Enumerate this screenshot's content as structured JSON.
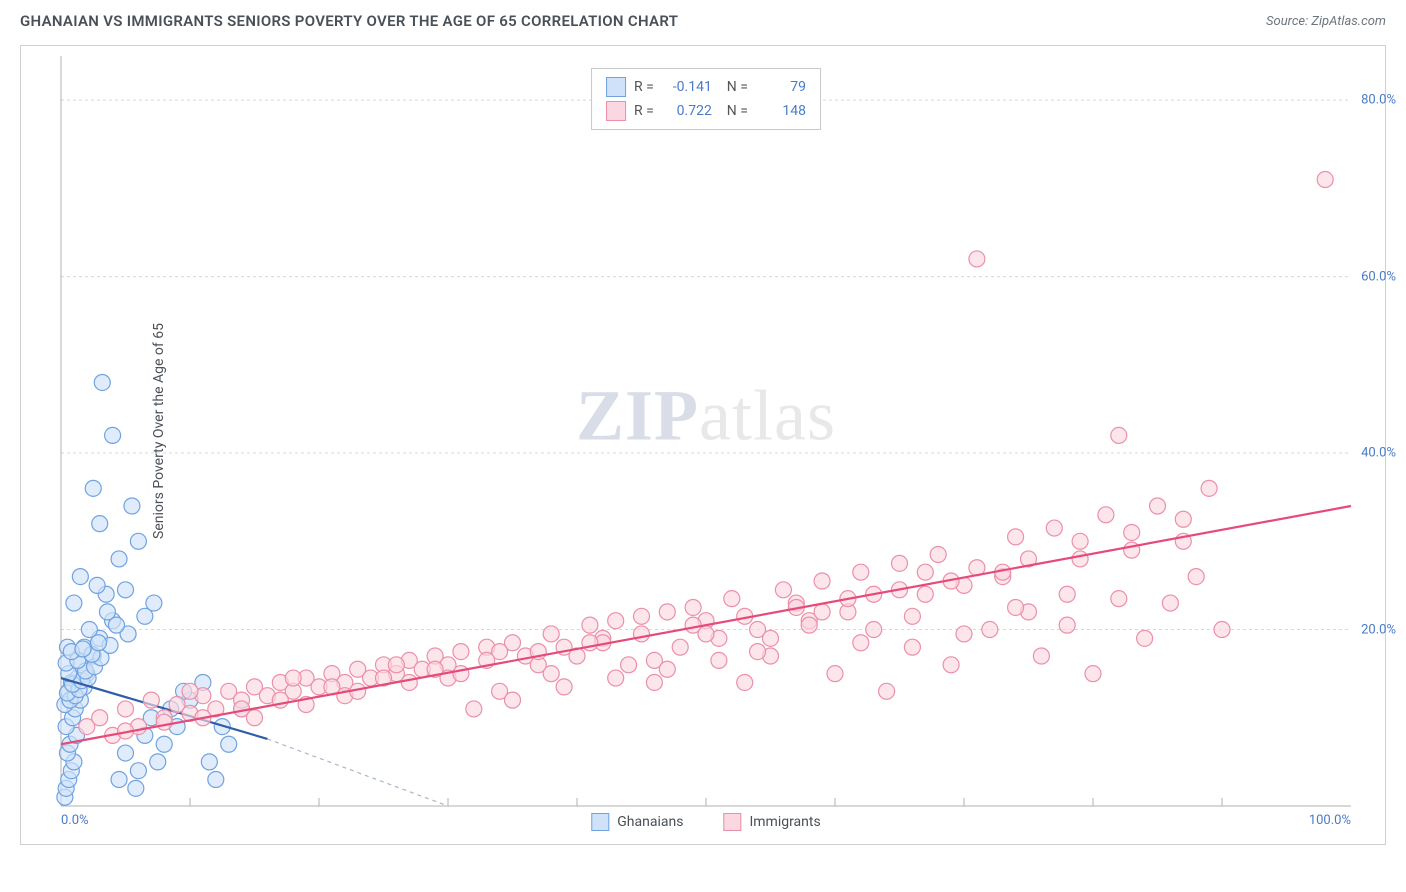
{
  "header": {
    "title": "GHANAIAN VS IMMIGRANTS SENIORS POVERTY OVER THE AGE OF 65 CORRELATION CHART",
    "source": "Source: ZipAtlas.com"
  },
  "chart": {
    "type": "scatter",
    "ylabel": "Seniors Poverty Over the Age of 65",
    "xlim": [
      0,
      100
    ],
    "ylim": [
      0,
      85
    ],
    "xtick_labels": [
      "0.0%",
      "100.0%"
    ],
    "ytick_values": [
      20,
      40,
      60,
      80
    ],
    "ytick_labels": [
      "20.0%",
      "40.0%",
      "60.0%",
      "80.0%"
    ],
    "xticks_minor": [
      10,
      20,
      30,
      40,
      50,
      60,
      70,
      80,
      90
    ],
    "grid_color": "#d8d8d8",
    "background_color": "#ffffff",
    "marker_radius": 8,
    "marker_stroke_width": 1.2,
    "line_width": 2.2,
    "series": [
      {
        "id": "ghanaians",
        "label": "Ghanaians",
        "fill": "#cfe2f9",
        "stroke": "#6fa3e0",
        "line_color": "#2f5da8",
        "dash_color": "#a8b8c8",
        "R": "-0.141",
        "N": "79",
        "trend": {
          "x1": 0,
          "y1": 14.5,
          "x2": 16,
          "y2": 7.6
        },
        "trend_dash": {
          "x1": 16,
          "y1": 7.6,
          "x2": 30,
          "y2": 0
        },
        "points": [
          [
            0.3,
            1
          ],
          [
            0.4,
            2
          ],
          [
            0.6,
            3
          ],
          [
            0.8,
            4
          ],
          [
            1,
            5
          ],
          [
            0.5,
            6
          ],
          [
            0.7,
            7
          ],
          [
            1.2,
            8
          ],
          [
            0.4,
            9
          ],
          [
            0.9,
            10
          ],
          [
            1.1,
            11
          ],
          [
            1.5,
            12
          ],
          [
            0.6,
            13
          ],
          [
            1.8,
            13.5
          ],
          [
            0.8,
            14
          ],
          [
            1.3,
            14.5
          ],
          [
            2,
            15
          ],
          [
            1.5,
            16
          ],
          [
            2.5,
            17
          ],
          [
            0.5,
            18
          ],
          [
            1.8,
            18
          ],
          [
            3,
            19
          ],
          [
            2.2,
            20
          ],
          [
            4,
            21
          ],
          [
            1,
            23
          ],
          [
            3.5,
            24
          ],
          [
            5,
            24.5
          ],
          [
            2.8,
            25
          ],
          [
            1.5,
            26
          ],
          [
            4.5,
            28
          ],
          [
            6,
            30
          ],
          [
            3,
            32
          ],
          [
            5.5,
            34
          ],
          [
            2.5,
            36
          ],
          [
            4,
            42
          ],
          [
            3.2,
            48
          ],
          [
            0.3,
            11.5
          ],
          [
            0.7,
            12
          ],
          [
            1.1,
            12.5
          ],
          [
            0.5,
            12.8
          ],
          [
            1.4,
            13.2
          ],
          [
            0.9,
            13.8
          ],
          [
            1.6,
            14.2
          ],
          [
            2.1,
            14.5
          ],
          [
            0.6,
            15
          ],
          [
            1.9,
            15.3
          ],
          [
            2.6,
            15.8
          ],
          [
            0.4,
            16.2
          ],
          [
            1.3,
            16.5
          ],
          [
            3.1,
            16.8
          ],
          [
            2.4,
            17.2
          ],
          [
            0.8,
            17.5
          ],
          [
            1.7,
            17.8
          ],
          [
            3.8,
            18.2
          ],
          [
            2.9,
            18.5
          ],
          [
            5.2,
            19.5
          ],
          [
            4.3,
            20.5
          ],
          [
            6.5,
            21.5
          ],
          [
            3.6,
            22
          ],
          [
            7.2,
            23
          ],
          [
            5.8,
            2
          ],
          [
            4.5,
            3
          ],
          [
            6,
            4
          ],
          [
            7.5,
            5
          ],
          [
            5,
            6
          ],
          [
            8,
            7
          ],
          [
            6.5,
            8
          ],
          [
            9,
            9
          ],
          [
            7,
            10
          ],
          [
            8.5,
            11
          ],
          [
            10,
            12
          ],
          [
            9.5,
            13
          ],
          [
            11,
            14
          ],
          [
            12,
            3
          ],
          [
            11.5,
            5
          ],
          [
            13,
            7
          ],
          [
            12.5,
            9
          ],
          [
            14,
            11
          ]
        ]
      },
      {
        "id": "immigrants",
        "label": "Immigrants",
        "fill": "#fbd7e1",
        "stroke": "#ec8fa8",
        "line_color": "#e54b7a",
        "R": "0.722",
        "N": "148",
        "trend": {
          "x1": 0,
          "y1": 7,
          "x2": 100,
          "y2": 34
        },
        "points": [
          [
            2,
            9
          ],
          [
            3,
            10
          ],
          [
            4,
            8
          ],
          [
            5,
            11
          ],
          [
            6,
            9
          ],
          [
            7,
            12
          ],
          [
            8,
            10
          ],
          [
            9,
            11.5
          ],
          [
            10,
            10.5
          ],
          [
            11,
            12.5
          ],
          [
            12,
            11
          ],
          [
            13,
            13
          ],
          [
            14,
            12
          ],
          [
            15,
            13.5
          ],
          [
            16,
            12.5
          ],
          [
            17,
            14
          ],
          [
            18,
            13
          ],
          [
            19,
            14.5
          ],
          [
            20,
            13.5
          ],
          [
            21,
            15
          ],
          [
            22,
            14
          ],
          [
            23,
            15.5
          ],
          [
            24,
            14.5
          ],
          [
            25,
            16
          ],
          [
            26,
            15
          ],
          [
            27,
            16.5
          ],
          [
            28,
            15.5
          ],
          [
            29,
            17
          ],
          [
            30,
            16
          ],
          [
            31,
            17.5
          ],
          [
            32,
            11
          ],
          [
            33,
            18
          ],
          [
            34,
            13
          ],
          [
            35,
            18.5
          ],
          [
            36,
            17
          ],
          [
            37,
            16
          ],
          [
            38,
            19.5
          ],
          [
            39,
            18
          ],
          [
            40,
            17
          ],
          [
            41,
            20.5
          ],
          [
            42,
            19
          ],
          [
            43,
            21
          ],
          [
            44,
            16
          ],
          [
            45,
            21.5
          ],
          [
            46,
            14
          ],
          [
            47,
            22
          ],
          [
            48,
            18
          ],
          [
            49,
            22.5
          ],
          [
            50,
            21
          ],
          [
            51,
            19
          ],
          [
            52,
            23.5
          ],
          [
            53,
            14
          ],
          [
            54,
            20
          ],
          [
            55,
            17
          ],
          [
            56,
            24.5
          ],
          [
            57,
            23
          ],
          [
            58,
            21
          ],
          [
            59,
            25.5
          ],
          [
            60,
            15
          ],
          [
            61,
            22
          ],
          [
            62,
            26.5
          ],
          [
            63,
            20
          ],
          [
            64,
            13
          ],
          [
            65,
            27.5
          ],
          [
            66,
            18
          ],
          [
            67,
            24
          ],
          [
            68,
            28.5
          ],
          [
            69,
            16
          ],
          [
            70,
            25
          ],
          [
            71,
            62
          ],
          [
            72,
            20
          ],
          [
            73,
            26
          ],
          [
            74,
            30.5
          ],
          [
            75,
            22
          ],
          [
            76,
            17
          ],
          [
            77,
            31.5
          ],
          [
            78,
            24
          ],
          [
            79,
            28
          ],
          [
            80,
            15
          ],
          [
            81,
            33
          ],
          [
            82,
            42
          ],
          [
            83,
            29
          ],
          [
            84,
            19
          ],
          [
            85,
            34
          ],
          [
            86,
            23
          ],
          [
            87,
            30
          ],
          [
            88,
            26
          ],
          [
            89,
            36
          ],
          [
            90,
            20
          ],
          [
            98,
            71
          ],
          [
            10,
            13
          ],
          [
            14,
            11
          ],
          [
            18,
            14.5
          ],
          [
            22,
            12.5
          ],
          [
            26,
            16
          ],
          [
            30,
            14.5
          ],
          [
            34,
            17.5
          ],
          [
            38,
            15
          ],
          [
            42,
            18.5
          ],
          [
            46,
            16.5
          ],
          [
            50,
            19.5
          ],
          [
            54,
            17.5
          ],
          [
            58,
            20.5
          ],
          [
            62,
            18.5
          ],
          [
            66,
            21.5
          ],
          [
            70,
            19.5
          ],
          [
            74,
            22.5
          ],
          [
            78,
            20.5
          ],
          [
            82,
            23.5
          ],
          [
            15,
            10
          ],
          [
            19,
            11.5
          ],
          [
            23,
            13
          ],
          [
            27,
            14
          ],
          [
            31,
            15
          ],
          [
            35,
            12
          ],
          [
            39,
            13.5
          ],
          [
            43,
            14.5
          ],
          [
            47,
            15.5
          ],
          [
            51,
            16.5
          ],
          [
            55,
            19
          ],
          [
            59,
            22
          ],
          [
            63,
            24
          ],
          [
            67,
            26.5
          ],
          [
            71,
            27
          ],
          [
            75,
            28
          ],
          [
            79,
            30
          ],
          [
            83,
            31
          ],
          [
            87,
            32.5
          ],
          [
            5,
            8.5
          ],
          [
            8,
            9.5
          ],
          [
            11,
            10
          ],
          [
            17,
            12
          ],
          [
            21,
            13.5
          ],
          [
            25,
            14.5
          ],
          [
            29,
            15.5
          ],
          [
            33,
            16.5
          ],
          [
            37,
            17.5
          ],
          [
            41,
            18.5
          ],
          [
            45,
            19.5
          ],
          [
            49,
            20.5
          ],
          [
            53,
            21.5
          ],
          [
            57,
            22.5
          ],
          [
            61,
            23.5
          ],
          [
            65,
            24.5
          ],
          [
            69,
            25.5
          ],
          [
            73,
            26.5
          ]
        ]
      }
    ]
  },
  "watermark": {
    "zip": "ZIP",
    "rest": "atlas"
  }
}
